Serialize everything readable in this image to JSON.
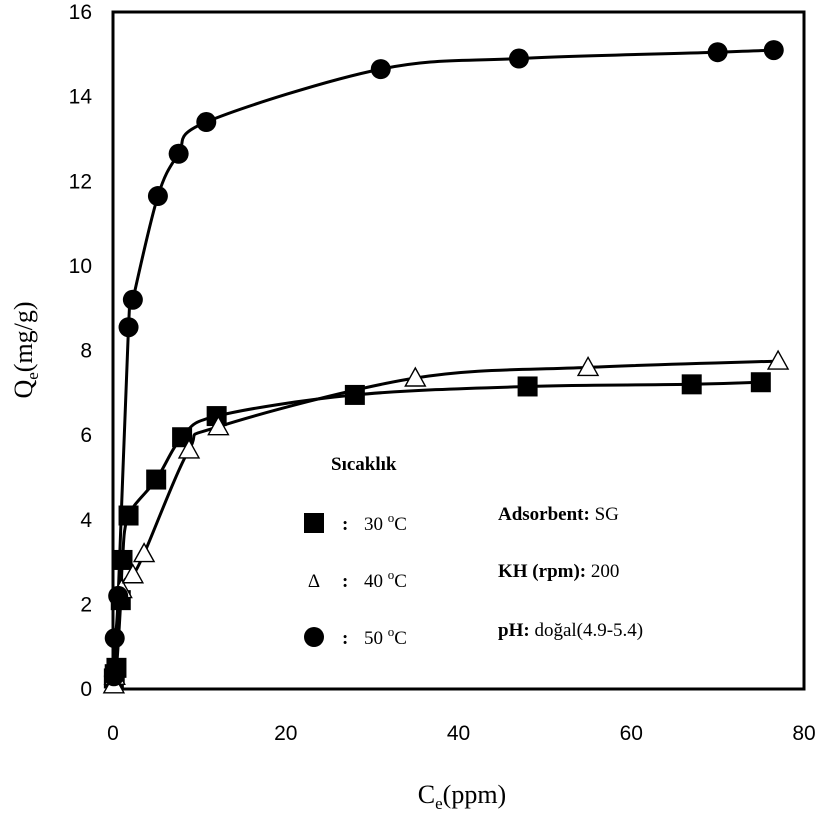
{
  "chart_data": {
    "type": "scatter",
    "xlabel": {
      "main": "C",
      "sub": "e",
      "rest": "(ppm)"
    },
    "ylabel": {
      "main": "Q",
      "sub": "e",
      "rest": "(mg/g)"
    },
    "xlim": [
      0,
      80
    ],
    "ylim": [
      0,
      16
    ],
    "xticks": [
      0,
      20,
      40,
      60,
      80
    ],
    "yticks": [
      0,
      2,
      4,
      6,
      8,
      10,
      12,
      14,
      16
    ],
    "grid": false,
    "legend": {
      "title": "Sıcaklık",
      "placement": "center",
      "colon": ":",
      "unit": "C",
      "degree": "o"
    },
    "series": [
      {
        "name": "30",
        "marker": "square",
        "x": [
          0.1,
          0.2,
          0.4,
          0.9,
          1.1,
          1.8,
          5.0,
          8.0,
          12.0,
          28.0,
          48.0,
          67.0,
          75.0
        ],
        "y": [
          0.25,
          0.35,
          0.5,
          2.1,
          3.05,
          4.1,
          4.95,
          5.95,
          6.45,
          6.95,
          7.15,
          7.2,
          7.25
        ]
      },
      {
        "name": "40",
        "marker": "triangle-open",
        "x": [
          0.1,
          0.2,
          1.0,
          2.3,
          3.6,
          8.8,
          12.2,
          35.0,
          55.0,
          77.0
        ],
        "y": [
          0.1,
          0.3,
          2.35,
          2.7,
          3.2,
          5.65,
          6.2,
          7.35,
          7.6,
          7.75
        ]
      },
      {
        "name": "50",
        "marker": "circle",
        "x": [
          0.1,
          0.2,
          0.6,
          1.8,
          2.3,
          5.2,
          7.6,
          10.8,
          31.0,
          47.0,
          70.0,
          76.5
        ],
        "y": [
          0.3,
          1.2,
          2.2,
          8.55,
          9.2,
          11.65,
          12.65,
          13.4,
          14.65,
          14.9,
          15.05,
          15.1
        ]
      }
    ],
    "annotations": [
      {
        "key": "Adsorbent:",
        "value": "SG"
      },
      {
        "key": "KH (rpm):",
        "value": "200"
      },
      {
        "key": "pH:",
        "value": "doğal(4.9-5.4)"
      }
    ],
    "colors": {
      "series": "#000000",
      "background": "#ffffff"
    }
  }
}
